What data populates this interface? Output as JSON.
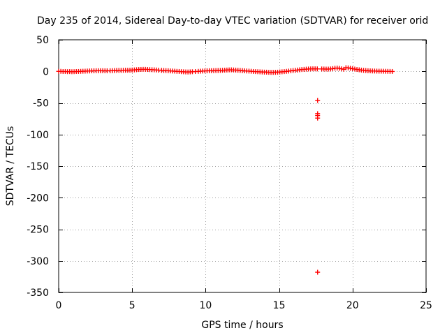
{
  "chart_data": {
    "type": "scatter",
    "title": "Day 235 of 2014, Sidereal Day-to-day VTEC variation (SDTVAR) for receiver orid",
    "xlabel": "GPS time / hours",
    "ylabel": "SDTVAR / TECUs",
    "xlim": [
      0,
      25
    ],
    "ylim": [
      -350,
      50
    ],
    "xticks": [
      0,
      5,
      10,
      15,
      20,
      25
    ],
    "yticks": [
      50,
      0,
      -50,
      -100,
      -150,
      -200,
      -250,
      -300,
      -350
    ],
    "grid": true,
    "marker": "+",
    "color": "#ff0000",
    "series": [
      {
        "name": "SDTVAR",
        "points": [
          [
            0.0,
            0.0
          ],
          [
            0.15,
            0.0
          ],
          [
            0.3,
            -0.3
          ],
          [
            0.45,
            -0.2
          ],
          [
            0.6,
            -0.5
          ],
          [
            0.75,
            -0.4
          ],
          [
            0.9,
            -0.6
          ],
          [
            1.05,
            -0.5
          ],
          [
            1.2,
            -0.3
          ],
          [
            1.35,
            -0.2
          ],
          [
            1.5,
            0.0
          ],
          [
            1.65,
            0.2
          ],
          [
            1.8,
            0.3
          ],
          [
            1.95,
            0.5
          ],
          [
            2.1,
            0.6
          ],
          [
            2.25,
            0.8
          ],
          [
            2.4,
            0.9
          ],
          [
            2.55,
            1.0
          ],
          [
            2.7,
            1.0
          ],
          [
            2.85,
            1.0
          ],
          [
            3.0,
            1.0
          ],
          [
            3.15,
            0.9
          ],
          [
            3.3,
            0.9
          ],
          [
            3.5,
            1.0
          ],
          [
            3.65,
            1.1
          ],
          [
            3.8,
            1.3
          ],
          [
            3.95,
            1.5
          ],
          [
            4.1,
            1.6
          ],
          [
            4.25,
            1.6
          ],
          [
            4.4,
            1.7
          ],
          [
            4.55,
            1.8
          ],
          [
            4.7,
            1.8
          ],
          [
            4.85,
            1.9
          ],
          [
            5.0,
            2.1
          ],
          [
            5.15,
            2.3
          ],
          [
            5.3,
            2.6
          ],
          [
            5.45,
            2.9
          ],
          [
            5.6,
            3.1
          ],
          [
            5.75,
            3.2
          ],
          [
            5.9,
            3.2
          ],
          [
            6.05,
            3.0
          ],
          [
            6.2,
            2.8
          ],
          [
            6.35,
            2.6
          ],
          [
            6.5,
            2.4
          ],
          [
            6.65,
            2.2
          ],
          [
            6.8,
            1.9
          ],
          [
            7.0,
            1.6
          ],
          [
            7.15,
            1.4
          ],
          [
            7.3,
            1.2
          ],
          [
            7.45,
            1.0
          ],
          [
            7.6,
            0.7
          ],
          [
            7.75,
            0.5
          ],
          [
            7.9,
            0.3
          ],
          [
            8.05,
            0.0
          ],
          [
            8.2,
            -0.2
          ],
          [
            8.35,
            -0.5
          ],
          [
            8.5,
            -0.7
          ],
          [
            8.65,
            -0.9
          ],
          [
            8.8,
            -1.0
          ],
          [
            8.95,
            -0.8
          ],
          [
            9.1,
            -0.6
          ],
          [
            9.3,
            -0.3
          ],
          [
            9.5,
            0.0
          ],
          [
            9.65,
            0.3
          ],
          [
            9.8,
            0.5
          ],
          [
            9.95,
            0.7
          ],
          [
            10.1,
            0.9
          ],
          [
            10.25,
            1.0
          ],
          [
            10.4,
            1.1
          ],
          [
            10.55,
            1.2
          ],
          [
            10.7,
            1.3
          ],
          [
            10.85,
            1.4
          ],
          [
            11.0,
            1.5
          ],
          [
            11.15,
            1.7
          ],
          [
            11.3,
            1.9
          ],
          [
            11.45,
            2.1
          ],
          [
            11.6,
            2.3
          ],
          [
            11.75,
            2.4
          ],
          [
            11.9,
            2.2
          ],
          [
            12.05,
            2.0
          ],
          [
            12.2,
            1.8
          ],
          [
            12.35,
            1.5
          ],
          [
            12.5,
            1.2
          ],
          [
            12.65,
            0.9
          ],
          [
            12.8,
            0.6
          ],
          [
            12.95,
            0.4
          ],
          [
            13.1,
            0.1
          ],
          [
            13.25,
            -0.2
          ],
          [
            13.4,
            -0.4
          ],
          [
            13.55,
            -0.6
          ],
          [
            13.7,
            -0.8
          ],
          [
            13.85,
            -1.0
          ],
          [
            14.0,
            -1.2
          ],
          [
            14.15,
            -1.3
          ],
          [
            14.3,
            -1.5
          ],
          [
            14.45,
            -1.6
          ],
          [
            14.6,
            -1.6
          ],
          [
            14.75,
            -1.5
          ],
          [
            14.9,
            -1.3
          ],
          [
            15.05,
            -1.0
          ],
          [
            15.2,
            -0.7
          ],
          [
            15.35,
            -0.4
          ],
          [
            15.5,
            0.0
          ],
          [
            15.65,
            0.4
          ],
          [
            15.8,
            0.9
          ],
          [
            15.95,
            1.3
          ],
          [
            16.1,
            1.7
          ],
          [
            16.25,
            2.1
          ],
          [
            16.4,
            2.5
          ],
          [
            16.55,
            2.9
          ],
          [
            16.7,
            3.2
          ],
          [
            16.85,
            3.5
          ],
          [
            17.0,
            3.7
          ],
          [
            17.15,
            3.9
          ],
          [
            17.3,
            4.0
          ],
          [
            17.45,
            4.0
          ],
          [
            17.6,
            3.9
          ],
          [
            17.62,
            -46.0
          ],
          [
            17.62,
            -67.0
          ],
          [
            17.62,
            -70.0
          ],
          [
            17.62,
            -74.0
          ],
          [
            17.62,
            -318.0
          ],
          [
            17.9,
            3.8
          ],
          [
            18.05,
            3.7
          ],
          [
            18.2,
            3.6
          ],
          [
            18.35,
            3.6
          ],
          [
            18.5,
            3.8
          ],
          [
            18.65,
            4.3
          ],
          [
            18.8,
            5.0
          ],
          [
            18.95,
            5.2
          ],
          [
            19.1,
            4.8
          ],
          [
            19.25,
            4.0
          ],
          [
            19.4,
            3.3
          ],
          [
            19.55,
            5.8
          ],
          [
            19.7,
            5.5
          ],
          [
            19.85,
            4.9
          ],
          [
            20.0,
            4.2
          ],
          [
            20.15,
            3.6
          ],
          [
            20.3,
            3.0
          ],
          [
            20.45,
            2.5
          ],
          [
            20.6,
            2.0
          ],
          [
            20.75,
            1.6
          ],
          [
            20.9,
            1.3
          ],
          [
            21.05,
            1.0
          ],
          [
            21.2,
            0.8
          ],
          [
            21.35,
            0.6
          ],
          [
            21.5,
            0.5
          ],
          [
            21.65,
            0.4
          ],
          [
            21.8,
            0.3
          ],
          [
            21.95,
            0.3
          ],
          [
            22.1,
            0.2
          ],
          [
            22.25,
            0.1
          ],
          [
            22.4,
            0.0
          ],
          [
            22.55,
            -0.1
          ],
          [
            22.7,
            -0.2
          ]
        ]
      }
    ]
  }
}
